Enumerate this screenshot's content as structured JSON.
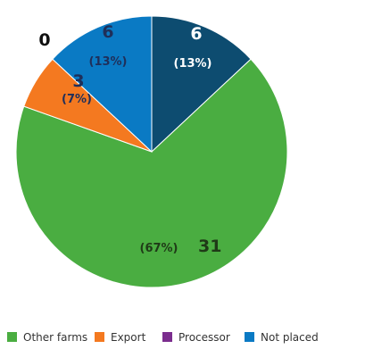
{
  "chart_data": {
    "type": "pie",
    "labels": [
      "Other farms",
      "Export",
      "Processor",
      "Not placed",
      ""
    ],
    "values": [
      31,
      3,
      0,
      6,
      6
    ],
    "percent_labels": [
      "(67%)",
      "(7%)",
      "",
      "(13%)",
      "(13%)"
    ],
    "count_labels": [
      "31",
      "3",
      "0",
      "6",
      "6"
    ],
    "colors": [
      "#4aad41",
      "#f47920",
      "#7b2d8e",
      "#0a7ac4",
      "#0d4c70"
    ],
    "label_colors": [
      "#1f3a17",
      "#1f2f5a",
      "#111111",
      "#1f2f5a",
      "#ffffff"
    ],
    "legend": [
      {
        "label": "Other farms",
        "color": "#4aad41"
      },
      {
        "label": "Export",
        "color": "#f47920"
      },
      {
        "label": "Processor",
        "color": "#7b2d8e"
      },
      {
        "label": "Not placed",
        "color": "#0a7ac4"
      }
    ],
    "legend_position": "bottom"
  }
}
